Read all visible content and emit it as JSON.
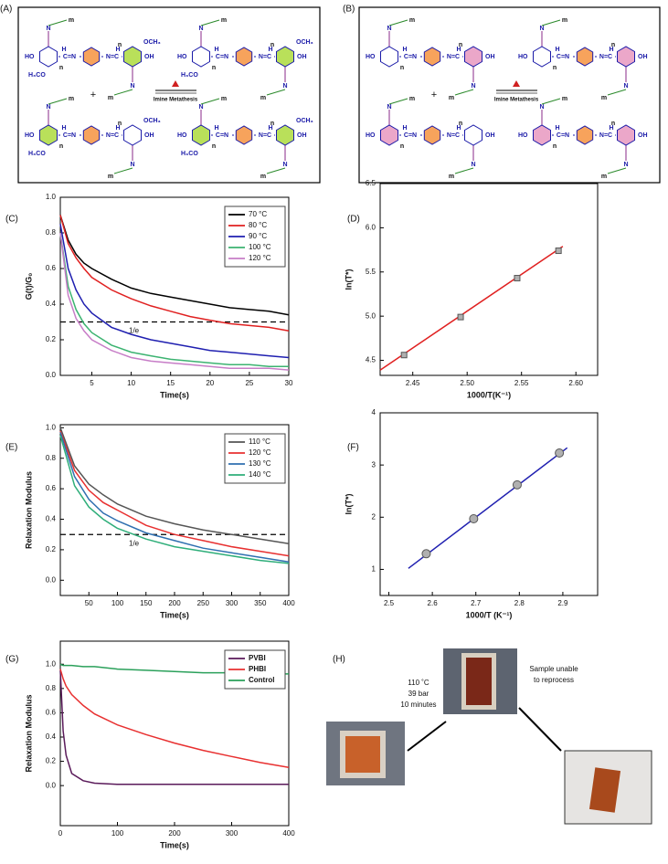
{
  "schemes": [
    {
      "label": "(A)",
      "reaction": "Imine Metathesis",
      "plus": "+",
      "atoms": {
        "ho": "HO",
        "oh": "OH",
        "cn": "C=N",
        "nc": "N=C",
        "h": "H",
        "n": "N",
        "ome": "OCH₃",
        "meo": "H₃CO",
        "n_rep": "n",
        "m_rep": "m"
      }
    },
    {
      "label": "(B)",
      "reaction": "Imine Metathesis",
      "plus": "+",
      "atoms": {
        "ho": "HO",
        "oh": "OH",
        "cn": "C=N",
        "nc": "N=C",
        "h": "H",
        "n": "N",
        "n_rep": "n",
        "m_rep": "m"
      }
    }
  ],
  "chart_data": [
    {
      "type": "line",
      "label": "(C)",
      "x_label": "Time(s)",
      "y_label": "G(t)/G₀",
      "xlim": [
        1,
        30
      ],
      "ylim": [
        0,
        1
      ],
      "xticks": [
        5,
        10,
        15,
        20,
        25,
        30
      ],
      "yticks": [
        {
          "value": 0,
          "label": "0.0"
        },
        0.2,
        0.4,
        0.6,
        0.8,
        {
          "value": 1,
          "label": "1.0"
        }
      ],
      "x": [
        1,
        2,
        3,
        4,
        5,
        7.5,
        10,
        12.5,
        15,
        17.5,
        20,
        22.5,
        25,
        27.5,
        30
      ],
      "series": [
        {
          "name": "70 °C",
          "color": "#000000",
          "values": [
            0.9,
            0.76,
            0.68,
            0.63,
            0.6,
            0.54,
            0.49,
            0.46,
            0.44,
            0.42,
            0.4,
            0.38,
            0.37,
            0.36,
            0.34
          ]
        },
        {
          "name": "80 °C",
          "color": "#e02020",
          "values": [
            0.9,
            0.74,
            0.66,
            0.6,
            0.55,
            0.48,
            0.43,
            0.39,
            0.36,
            0.33,
            0.31,
            0.29,
            0.28,
            0.27,
            0.25
          ]
        },
        {
          "name": "90 °C",
          "color": "#1f1fb0",
          "values": [
            0.85,
            0.6,
            0.48,
            0.4,
            0.35,
            0.27,
            0.23,
            0.2,
            0.18,
            0.16,
            0.14,
            0.13,
            0.12,
            0.11,
            0.1
          ]
        },
        {
          "name": "100 °C",
          "color": "#3cb371",
          "values": [
            0.8,
            0.5,
            0.37,
            0.29,
            0.24,
            0.17,
            0.13,
            0.11,
            0.09,
            0.08,
            0.07,
            0.06,
            0.06,
            0.05,
            0.05
          ]
        },
        {
          "name": "120 °C",
          "color": "#c77dc7",
          "values": [
            0.8,
            0.45,
            0.32,
            0.25,
            0.2,
            0.14,
            0.1,
            0.08,
            0.07,
            0.06,
            0.05,
            0.04,
            0.04,
            0.04,
            0.03
          ]
        }
      ],
      "ref_line": {
        "value": 0.3,
        "label": "1/e"
      },
      "legend": "upper right"
    },
    {
      "type": "scatter",
      "label": "(D)",
      "x_label": "1000/T(K⁻¹)",
      "y_label": "ln(T*)",
      "xlim": [
        2.42,
        2.62
      ],
      "ylim": [
        4.33,
        6.5
      ],
      "xticks": [
        2.45,
        {
          "value": 2.5,
          "label": "2.50"
        },
        2.55,
        {
          "value": 2.6,
          "label": "2.60"
        }
      ],
      "yticks": [
        4.5,
        {
          "value": 5,
          "label": "5.0"
        },
        5.5,
        {
          "value": 6,
          "label": "6.0"
        },
        6.5
      ],
      "x": [
        2.442,
        2.494,
        2.546,
        2.584
      ],
      "values": [
        4.56,
        4.99,
        5.43,
        5.74
      ],
      "color": "#b0b0b0",
      "marker": "square",
      "fit": {
        "x": [
          2.42,
          2.588
        ],
        "values": [
          4.39,
          5.79
        ],
        "color": "#e02020"
      }
    },
    {
      "type": "line",
      "label": "(E)",
      "x_label": "Time(s)",
      "y_label": "Relaxation Modulus",
      "xlim": [
        0,
        400
      ],
      "ylim": [
        -0.1,
        1.02
      ],
      "xticks": [
        50,
        100,
        150,
        200,
        250,
        300,
        350,
        400
      ],
      "yticks": [
        {
          "value": 0,
          "label": "0.0"
        },
        0.2,
        0.4,
        0.6,
        0.8,
        {
          "value": 1,
          "label": "1.0"
        }
      ],
      "x": [
        0,
        25,
        50,
        75,
        100,
        150,
        200,
        250,
        300,
        350,
        400
      ],
      "series": [
        {
          "name": "110 °C",
          "color": "#555555",
          "values": [
            1.0,
            0.75,
            0.63,
            0.56,
            0.5,
            0.42,
            0.37,
            0.33,
            0.3,
            0.27,
            0.24
          ]
        },
        {
          "name": "120 °C",
          "color": "#e83030",
          "values": [
            0.98,
            0.72,
            0.59,
            0.51,
            0.46,
            0.36,
            0.3,
            0.26,
            0.22,
            0.19,
            0.16
          ]
        },
        {
          "name": "130 °C",
          "color": "#2f6fb0",
          "values": [
            0.97,
            0.68,
            0.53,
            0.44,
            0.39,
            0.31,
            0.26,
            0.21,
            0.18,
            0.15,
            0.12
          ]
        },
        {
          "name": "140 °C",
          "color": "#2fae7a",
          "values": [
            0.95,
            0.62,
            0.48,
            0.4,
            0.34,
            0.27,
            0.22,
            0.19,
            0.16,
            0.13,
            0.11
          ]
        }
      ],
      "ref_line": {
        "value": 0.3,
        "label": "1/e"
      },
      "legend": "upper right"
    },
    {
      "type": "scatter",
      "label": "(F)",
      "x_label": "1000/T (K⁻¹)",
      "y_label": "ln(T*)",
      "xlim": [
        2.48,
        2.98
      ],
      "ylim": [
        0.5,
        4
      ],
      "xticks": [
        2.5,
        2.6,
        2.7,
        2.8,
        2.9
      ],
      "yticks": [
        1,
        2,
        3,
        4
      ],
      "x": [
        2.586,
        2.695,
        2.795,
        2.892
      ],
      "values": [
        1.3,
        1.97,
        2.62,
        3.23
      ],
      "color": "#b0b0b0",
      "marker": "circle",
      "fit": {
        "x": [
          2.545,
          2.91
        ],
        "values": [
          1.02,
          3.33
        ],
        "color": "#1f1fb0"
      }
    },
    {
      "type": "line",
      "label": "(G)",
      "x_label": "Time(s)",
      "y_label": "Relaxation Modulus",
      "xlim": [
        0,
        400
      ],
      "ylim": [
        -0.33,
        1.19
      ],
      "xticks": [
        0,
        100,
        200,
        300,
        400
      ],
      "yticks": [
        {
          "value": 0,
          "label": "0.0"
        },
        0.2,
        0.4,
        0.6,
        0.8,
        {
          "value": 1,
          "label": "1.0"
        }
      ],
      "x": [
        0,
        5,
        10,
        20,
        40,
        60,
        100,
        150,
        200,
        250,
        300,
        350,
        400
      ],
      "series": [
        {
          "name": "PVBI",
          "color": "#5a1a5a",
          "values": [
            0.95,
            0.45,
            0.25,
            0.1,
            0.04,
            0.02,
            0.01,
            0.01,
            0.01,
            0.01,
            0.01,
            0.01,
            0.01
          ]
        },
        {
          "name": "PHBI",
          "color": "#e83030",
          "values": [
            0.96,
            0.88,
            0.82,
            0.75,
            0.66,
            0.59,
            0.5,
            0.42,
            0.35,
            0.29,
            0.24,
            0.19,
            0.15
          ]
        },
        {
          "name": "Control",
          "color": "#2aa05a",
          "values": [
            1.0,
            0.99,
            0.99,
            0.99,
            0.98,
            0.98,
            0.96,
            0.95,
            0.94,
            0.93,
            0.93,
            0.92,
            0.92
          ]
        }
      ],
      "legend": "upper right"
    }
  ],
  "photos": {
    "label": "(H)",
    "condition_lines": [
      "110 ˚C",
      "39 bar",
      "10 minutes"
    ],
    "outcome_lines": [
      "Sample unable",
      "to reprocess"
    ]
  }
}
